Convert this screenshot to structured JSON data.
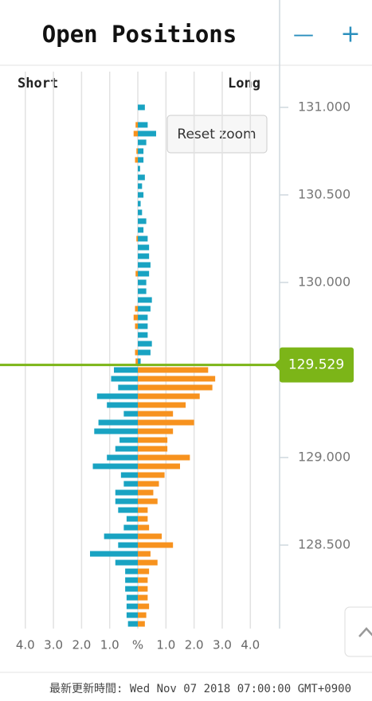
{
  "header": {
    "title": "Open Positions",
    "minus": "—",
    "plus": "+"
  },
  "chart_data": {
    "type": "butterfly-bar",
    "left_label": "Short",
    "right_label": "Long",
    "y": [
      131,
      130.95,
      130.9,
      130.85,
      130.8,
      130.75,
      130.7,
      130.65,
      130.6,
      130.55,
      130.5,
      130.45,
      130.4,
      130.35,
      130.3,
      130.25,
      130.2,
      130.15,
      130.1,
      130.05,
      130,
      129.95,
      129.9,
      129.85,
      129.8,
      129.75,
      129.7,
      129.65,
      129.6,
      129.55,
      129.5,
      129.45,
      129.4,
      129.35,
      129.3,
      129.25,
      129.2,
      129.15,
      129.1,
      129.05,
      129,
      128.95,
      128.9,
      128.85,
      128.8,
      128.75,
      128.7,
      128.65,
      128.6,
      128.55,
      128.5,
      128.45,
      128.4,
      128.35,
      128.3,
      128.25,
      128.2,
      128.15,
      128.1,
      128.05
    ],
    "series": [
      {
        "color": "#19a3c2",
        "values": [
          0.25,
          0,
          0.35,
          0.65,
          0.3,
          0.2,
          0.2,
          0.08,
          0.25,
          0.15,
          0.2,
          0.1,
          0.15,
          0.3,
          0.2,
          0.35,
          0.4,
          0.4,
          0.45,
          0.4,
          0.3,
          0.3,
          0.5,
          0.45,
          0.35,
          0.35,
          0.35,
          0.5,
          0.45,
          0.1,
          -0.85,
          -0.95,
          -0.7,
          -1.45,
          -1.1,
          -0.5,
          -1.4,
          -1.55,
          -0.65,
          -0.8,
          -1.1,
          -1.6,
          -0.6,
          -0.5,
          -0.8,
          -0.8,
          -0.7,
          -0.4,
          -0.5,
          -1.2,
          -0.7,
          -1.7,
          -0.8,
          -0.45,
          -0.45,
          -0.45,
          -0.4,
          -0.4,
          -0.4,
          -0.35
        ]
      },
      {
        "color": "#f7921e",
        "values": [
          0,
          0,
          -0.08,
          -0.15,
          0,
          -0.05,
          -0.1,
          0,
          0,
          0,
          0,
          0,
          0,
          0,
          0,
          -0.05,
          0,
          0,
          0,
          -0.08,
          0,
          0,
          0,
          -0.1,
          -0.15,
          -0.1,
          0,
          0,
          -0.1,
          -0.08,
          2.5,
          2.75,
          2.65,
          2.2,
          1.7,
          1.25,
          2.0,
          1.25,
          1.05,
          1.05,
          1.85,
          1.5,
          0.95,
          0.75,
          0.55,
          0.7,
          0.35,
          0.35,
          0.4,
          0.85,
          1.25,
          0.45,
          0.7,
          0.4,
          0.35,
          0.35,
          0.35,
          0.4,
          0.3,
          0.25
        ]
      }
    ],
    "xlim": [
      -4.9,
      5.04
    ],
    "xticks": [
      {
        "value": -4,
        "label": "4.0"
      },
      {
        "value": -3,
        "label": "3.0"
      },
      {
        "value": -2,
        "label": "2.0"
      },
      {
        "value": -1,
        "label": "1.0"
      },
      {
        "value": 0,
        "label": "%"
      },
      {
        "value": 1,
        "label": "1.0"
      },
      {
        "value": 2,
        "label": "2.0"
      },
      {
        "value": 3,
        "label": "3.0"
      },
      {
        "value": 4,
        "label": "4.0"
      }
    ],
    "ylim": [
      128.023,
      131.077
    ],
    "yticks": [
      {
        "value": 131,
        "label": "131.000"
      },
      {
        "value": 130.5,
        "label": "130.500"
      },
      {
        "value": 130,
        "label": "130.000"
      },
      {
        "value": 129,
        "label": "129.000"
      },
      {
        "value": 128.5,
        "label": "128.500"
      }
    ],
    "current_price": 129.529,
    "current_color": "#7cb518",
    "reset_zoom": "Reset zoom",
    "footer": "最新更新時間: Wed Nov 07 2018 07:00:00 GMT+0900"
  }
}
